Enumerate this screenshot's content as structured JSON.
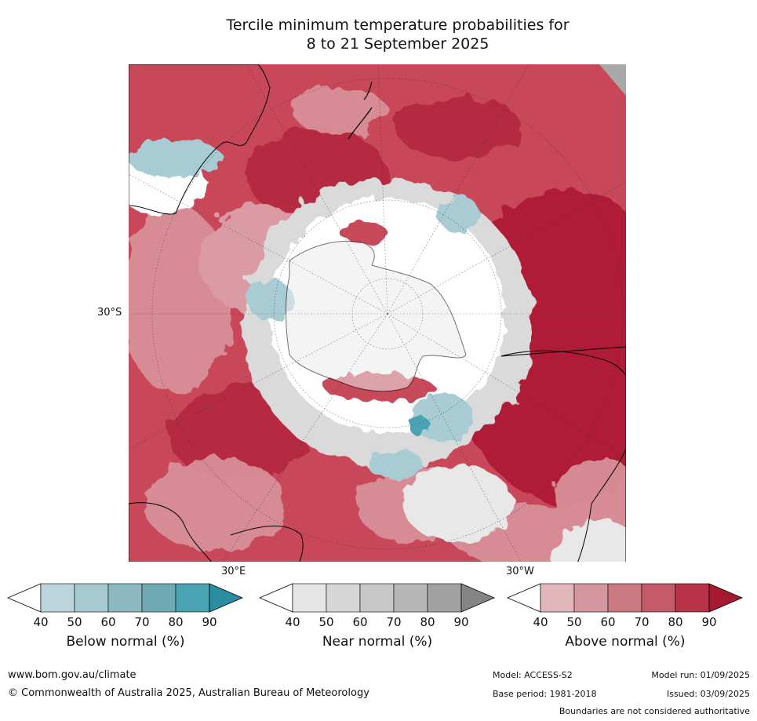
{
  "title": {
    "line1": "Tercile minimum temperature probabilities for",
    "line2": "8 to 21 September 2025"
  },
  "map": {
    "lat_label_left": "30°S",
    "lon_label_30e": "30°E",
    "lon_label_30w": "30°W",
    "colors": {
      "ocean_base": "#c8485a",
      "above_strong": "#b01a38",
      "above_mid": "#d88f98",
      "near": "#dadada",
      "below": "#a9ccd4",
      "white": "#ffffff",
      "coast": "#000000"
    }
  },
  "colorbars": [
    {
      "title": "Below normal (%)",
      "ticks": [
        "40",
        "50",
        "60",
        "70",
        "80",
        "90"
      ],
      "colors": [
        "#bcd5dc",
        "#a7c9d0",
        "#8cb9c1",
        "#6fa9b4",
        "#4aa3b3",
        "#2a8ea1"
      ]
    },
    {
      "title": "Near normal (%)",
      "ticks": [
        "40",
        "50",
        "60",
        "70",
        "80",
        "90"
      ],
      "colors": [
        "#e5e5e5",
        "#d6d6d6",
        "#c8c8c8",
        "#b7b7b7",
        "#a2a2a2",
        "#858585"
      ]
    },
    {
      "title": "Above normal (%)",
      "ticks": [
        "40",
        "50",
        "60",
        "70",
        "80",
        "90"
      ],
      "colors": [
        "#e1b7bc",
        "#d5979f",
        "#c97a83",
        "#c55b68",
        "#b93348",
        "#a6192f"
      ]
    }
  ],
  "footer": {
    "website": "www.bom.gov.au/climate",
    "copyright": "© Commonwealth of Australia 2025, Australian Bureau of Meteorology",
    "model": "Model: ACCESS-S2",
    "model_run": "Model run: 01/09/2025",
    "base_period": "Base period: 1981-2018",
    "issued": "Issued: 03/09/2025",
    "disclaimer": "Boundaries are not considered authoritative"
  }
}
